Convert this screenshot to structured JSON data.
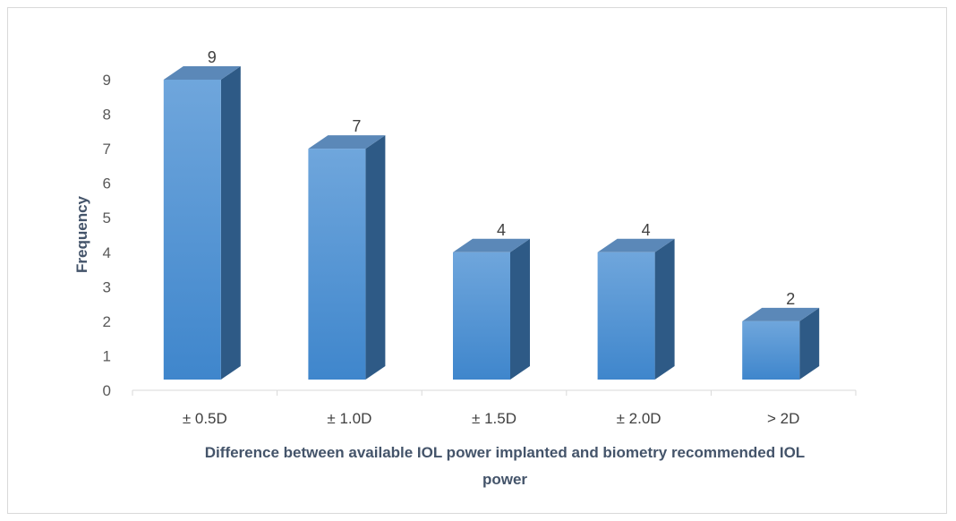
{
  "chart_data": {
    "type": "bar",
    "categories": [
      "± 0.5D",
      "± 1.0D",
      "± 1.5D",
      "± 2.0D",
      "> 2D"
    ],
    "values": [
      9,
      7,
      4,
      4,
      2
    ],
    "data_labels": [
      "9",
      "7",
      "4",
      "4",
      "2"
    ],
    "xlabel_lines": [
      "Difference between available IOL power implanted and biometry recommended IOL",
      "power"
    ],
    "ylabel": "Frequency",
    "ylim": [
      0,
      9
    ],
    "yticks": [
      "0",
      "1",
      "2",
      "3",
      "4",
      "5",
      "6",
      "7",
      "8",
      "9"
    ],
    "grid": false,
    "legend": "none",
    "style": "3d-column",
    "colors": {
      "front_top": "#6fa6dc",
      "front_bottom": "#3f86cc",
      "side": "#2e5a86",
      "top": "#5b88b8"
    }
  }
}
